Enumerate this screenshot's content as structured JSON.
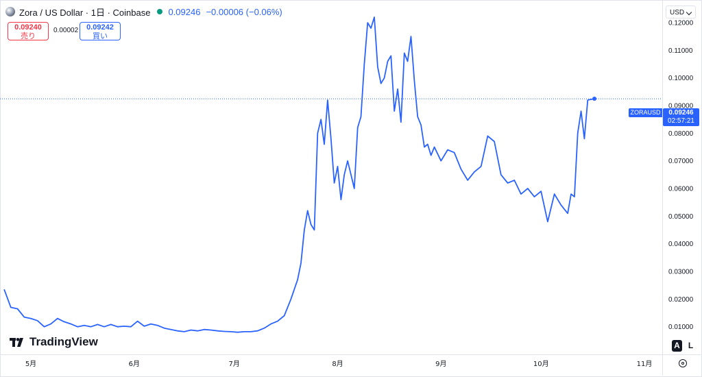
{
  "header": {
    "title": "Zora / US Dollar · 1日 · Coinbase",
    "price": "0.09246",
    "change": "−0.00006 (−0.06%)"
  },
  "trade": {
    "sell_price": "0.09240",
    "sell_label": "売り",
    "spread": "0.00002",
    "buy_price": "0.09242",
    "buy_label": "買い"
  },
  "currency_button": "USD",
  "price_tag": {
    "symbol": "ZORAUSD",
    "price": "0.09246",
    "countdown": "02:57:21"
  },
  "brand": "TradingView",
  "scale_buttons": {
    "auto": "A",
    "log": "L"
  },
  "icons": {
    "logo": "zora-coin-icon",
    "live": "market-open-dot-icon",
    "settings": "gear-icon"
  },
  "colors": {
    "line": "#2962ff",
    "sell": "#f23645",
    "buy": "#2962ff",
    "live": "#089981"
  },
  "chart_data": {
    "type": "line",
    "ylim": [
      0,
      0.1282
    ],
    "y_ticks": [
      "0.12000",
      "0.11000",
      "0.10000",
      "0.09000",
      "0.08000",
      "0.07000",
      "0.06000",
      "0.05000",
      "0.04000",
      "0.03000",
      "0.02000",
      "0.01000"
    ],
    "y_tick_values": [
      0.12,
      0.11,
      0.1,
      0.09,
      0.08,
      0.07,
      0.06,
      0.05,
      0.04,
      0.03,
      0.02,
      0.01
    ],
    "x_ticks": [
      "5月",
      "6月",
      "7月",
      "8月",
      "9月",
      "10月",
      "11月"
    ],
    "x_tick_dates": [
      "2025-05-01",
      "2025-06-01",
      "2025-07-01",
      "2025-08-01",
      "2025-09-01",
      "2025-10-01",
      "2025-11-01"
    ],
    "last_price": 0.09246,
    "series": [
      {
        "x": [
          "2025-04-23",
          "2025-04-25",
          "2025-04-27",
          "2025-04-29",
          "2025-05-01",
          "2025-05-03",
          "2025-05-05",
          "2025-05-07",
          "2025-05-09",
          "2025-05-11",
          "2025-05-13",
          "2025-05-15",
          "2025-05-17",
          "2025-05-19",
          "2025-05-21",
          "2025-05-23",
          "2025-05-25",
          "2025-05-27",
          "2025-05-29",
          "2025-05-31",
          "2025-06-02",
          "2025-06-04",
          "2025-06-06",
          "2025-06-08",
          "2025-06-10",
          "2025-06-12",
          "2025-06-14",
          "2025-06-16",
          "2025-06-18",
          "2025-06-20",
          "2025-06-22",
          "2025-06-24",
          "2025-06-26",
          "2025-06-28",
          "2025-06-30",
          "2025-07-02",
          "2025-07-04",
          "2025-07-06",
          "2025-07-08",
          "2025-07-10",
          "2025-07-12",
          "2025-07-14",
          "2025-07-16",
          "2025-07-18",
          "2025-07-20",
          "2025-07-21",
          "2025-07-22",
          "2025-07-23",
          "2025-07-24",
          "2025-07-25",
          "2025-07-26",
          "2025-07-27",
          "2025-07-28",
          "2025-07-29",
          "2025-07-30",
          "2025-07-31",
          "2025-08-01",
          "2025-08-02",
          "2025-08-03",
          "2025-08-04",
          "2025-08-05",
          "2025-08-06",
          "2025-08-07",
          "2025-08-08",
          "2025-08-09",
          "2025-08-10",
          "2025-08-11",
          "2025-08-12",
          "2025-08-13",
          "2025-08-14",
          "2025-08-15",
          "2025-08-16",
          "2025-08-17",
          "2025-08-18",
          "2025-08-19",
          "2025-08-20",
          "2025-08-21",
          "2025-08-22",
          "2025-08-23",
          "2025-08-24",
          "2025-08-25",
          "2025-08-26",
          "2025-08-27",
          "2025-08-28",
          "2025-08-29",
          "2025-08-30",
          "2025-09-01",
          "2025-09-03",
          "2025-09-05",
          "2025-09-07",
          "2025-09-09",
          "2025-09-11",
          "2025-09-13",
          "2025-09-15",
          "2025-09-17",
          "2025-09-19",
          "2025-09-21",
          "2025-09-23",
          "2025-09-25",
          "2025-09-27",
          "2025-09-29",
          "2025-10-01",
          "2025-10-03",
          "2025-10-05",
          "2025-10-07",
          "2025-10-09",
          "2025-10-10",
          "2025-10-11",
          "2025-10-12",
          "2025-10-13",
          "2025-10-14",
          "2025-10-15",
          "2025-10-17"
        ],
        "y": [
          0.0235,
          0.017,
          0.0165,
          0.0135,
          0.013,
          0.0122,
          0.01,
          0.011,
          0.013,
          0.0118,
          0.011,
          0.01,
          0.0105,
          0.01,
          0.0108,
          0.01,
          0.0108,
          0.01,
          0.0102,
          0.01,
          0.012,
          0.0102,
          0.011,
          0.0105,
          0.0095,
          0.009,
          0.0085,
          0.0082,
          0.0088,
          0.0085,
          0.009,
          0.0088,
          0.0085,
          0.0083,
          0.0082,
          0.008,
          0.0082,
          0.0082,
          0.0085,
          0.0095,
          0.011,
          0.012,
          0.014,
          0.02,
          0.027,
          0.033,
          0.045,
          0.052,
          0.047,
          0.045,
          0.08,
          0.085,
          0.076,
          0.092,
          0.078,
          0.062,
          0.068,
          0.056,
          0.065,
          0.07,
          0.065,
          0.06,
          0.082,
          0.086,
          0.105,
          0.12,
          0.118,
          0.122,
          0.104,
          0.098,
          0.1,
          0.106,
          0.108,
          0.088,
          0.096,
          0.084,
          0.109,
          0.106,
          0.115,
          0.099,
          0.086,
          0.083,
          0.075,
          0.076,
          0.072,
          0.075,
          0.07,
          0.074,
          0.073,
          0.067,
          0.063,
          0.066,
          0.068,
          0.079,
          0.077,
          0.065,
          0.062,
          0.063,
          0.058,
          0.06,
          0.057,
          0.059,
          0.048,
          0.058,
          0.054,
          0.051,
          0.058,
          0.057,
          0.08,
          0.088,
          0.078,
          0.092,
          0.0925
        ]
      }
    ]
  }
}
